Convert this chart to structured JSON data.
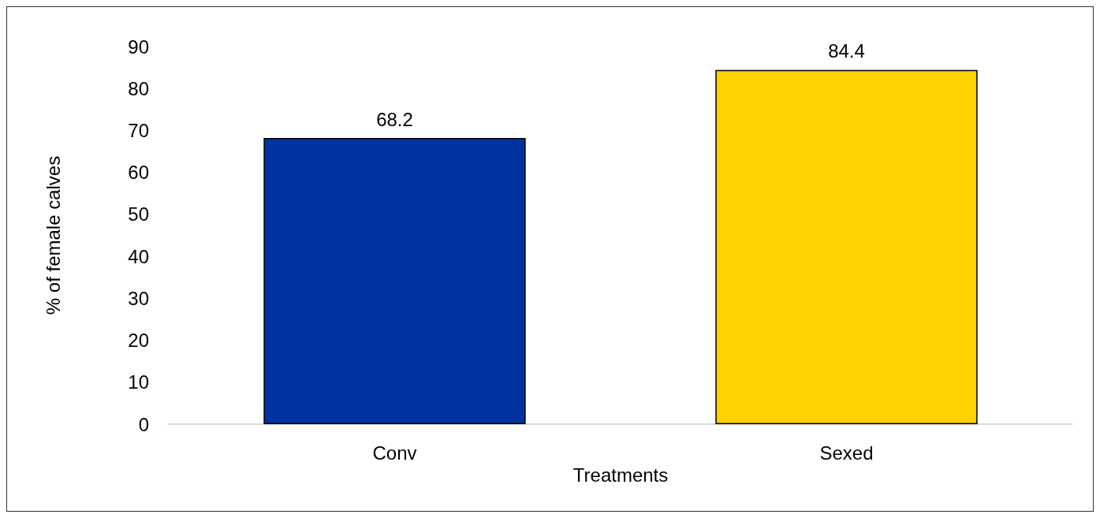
{
  "chart_data": {
    "type": "bar",
    "xlabel": "Treatments",
    "ylabel": "% of female calves",
    "categories": [
      "Conv",
      "Sexed"
    ],
    "values": [
      68.2,
      84.4
    ],
    "colors": [
      "#0033a0",
      "#ffd100"
    ],
    "ylim": [
      0,
      90
    ],
    "yticks": [
      0,
      10,
      20,
      30,
      40,
      50,
      60,
      70,
      80,
      90
    ],
    "grid": false,
    "data_labels": true
  }
}
